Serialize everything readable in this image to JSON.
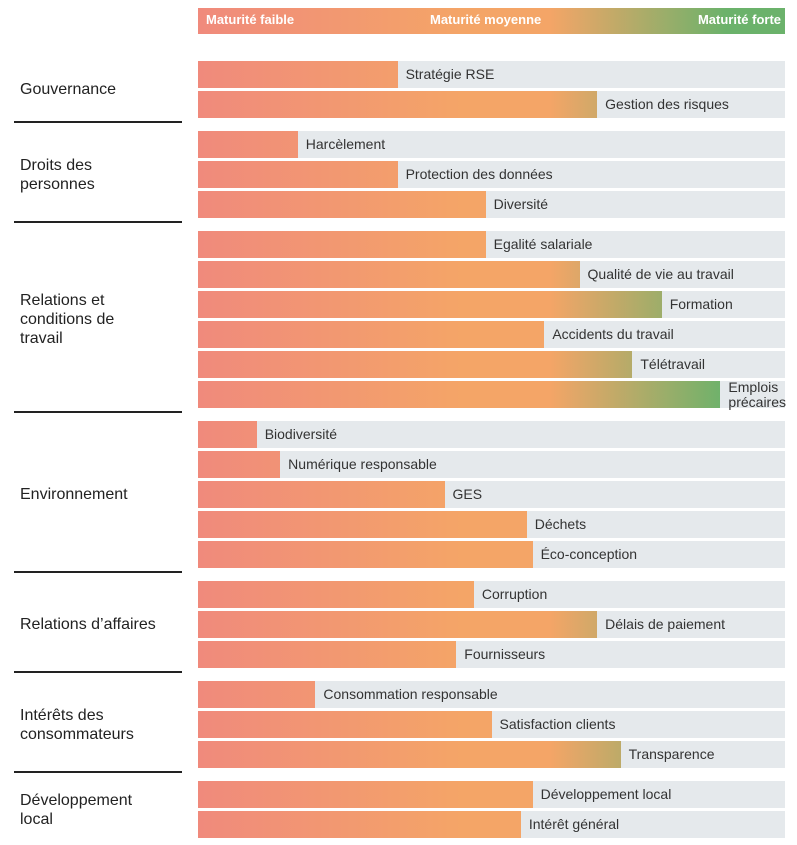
{
  "chart_data": {
    "type": "bar",
    "orientation": "horizontal",
    "scale_labels": [
      "Maturité faible",
      "Maturité moyenne",
      "Maturité forte"
    ],
    "colors": [
      "#f08a7c",
      "#f4a567",
      "#6bb26b"
    ],
    "track_color": "#e5e9ec",
    "xlim": [
      0,
      100
    ],
    "groups": [
      {
        "name": "Gouvernance",
        "categories": [
          "Stratégie RSE",
          "Gestion des risques"
        ],
        "values": [
          34,
          68
        ]
      },
      {
        "name": "Droits des\npersonnes",
        "categories": [
          "Harcèlement",
          "Protection des données",
          "Diversité"
        ],
        "values": [
          17,
          34,
          49
        ]
      },
      {
        "name": "Relations et\nconditions de\ntravail",
        "categories": [
          "Egalité salariale",
          "Qualité de vie au travail",
          "Formation",
          "Accidents du travail",
          "Télétravail",
          "Emplois\nprécaires"
        ],
        "values": [
          49,
          65,
          79,
          59,
          74,
          89
        ]
      },
      {
        "name": "Environnement",
        "categories": [
          "Biodiversité",
          "Numérique responsable",
          "GES",
          "Déchets",
          "Éco-conception"
        ],
        "values": [
          10,
          14,
          42,
          56,
          57
        ]
      },
      {
        "name": "Relations d’affaires",
        "categories": [
          "Corruption",
          "Délais de paiement",
          "Fournisseurs"
        ],
        "values": [
          47,
          68,
          44
        ]
      },
      {
        "name": "Intérêts des\nconsommateurs",
        "categories": [
          "Consommation responsable",
          "Satisfaction clients",
          "Transparence"
        ],
        "values": [
          20,
          50,
          72
        ]
      },
      {
        "name": "Développement\nlocal",
        "categories": [
          "Développement local",
          "Intérêt général"
        ],
        "values": [
          57,
          55
        ]
      }
    ]
  }
}
